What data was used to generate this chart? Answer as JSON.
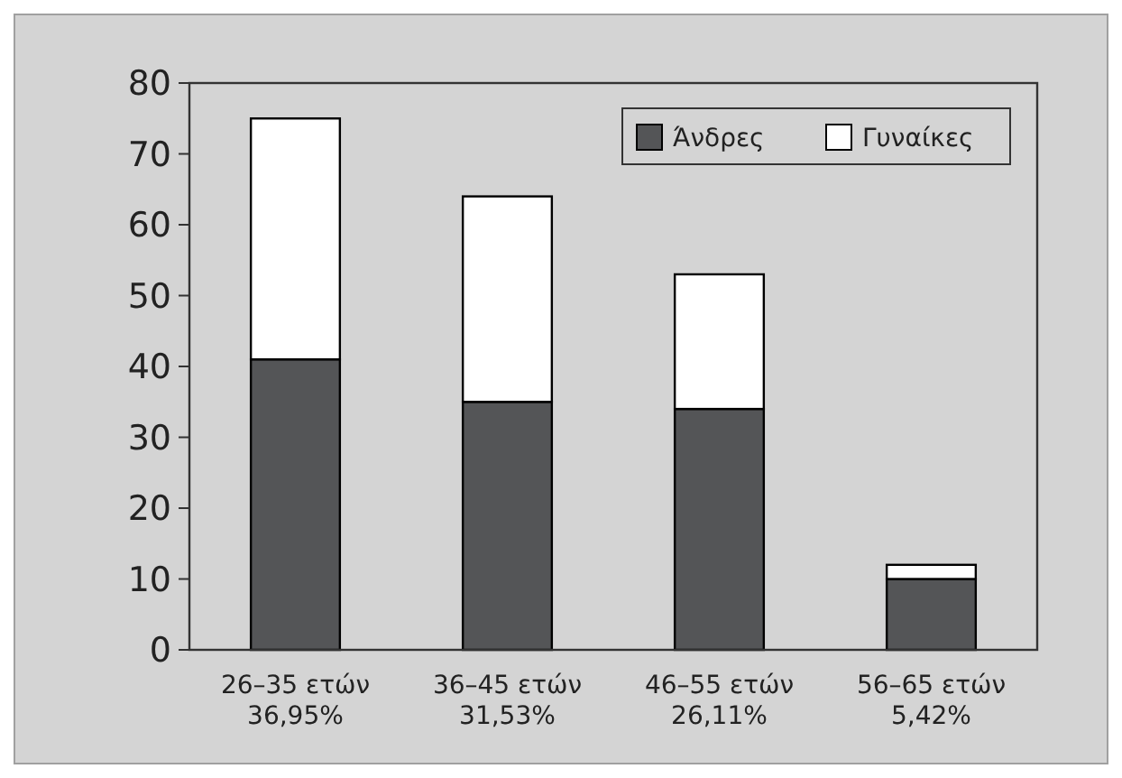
{
  "chart_data": {
    "type": "bar",
    "stacked": true,
    "categories": [
      "26–35 ετών\n36,95%",
      "36–45 ετών\n31,53%",
      "46–55 ετών\n26,11%",
      "56–65 ετών\n5,42%"
    ],
    "series": [
      {
        "name": "Άνδρες",
        "color": "#545557",
        "values": [
          41,
          35,
          34,
          10
        ]
      },
      {
        "name": "Γυναίκες",
        "color": "#ffffff",
        "values": [
          34,
          29,
          19,
          2
        ]
      }
    ],
    "ylim": [
      0,
      80
    ],
    "yticks": [
      0,
      10,
      20,
      30,
      40,
      50,
      60,
      70,
      80
    ],
    "grid": false,
    "legend": "top right"
  }
}
